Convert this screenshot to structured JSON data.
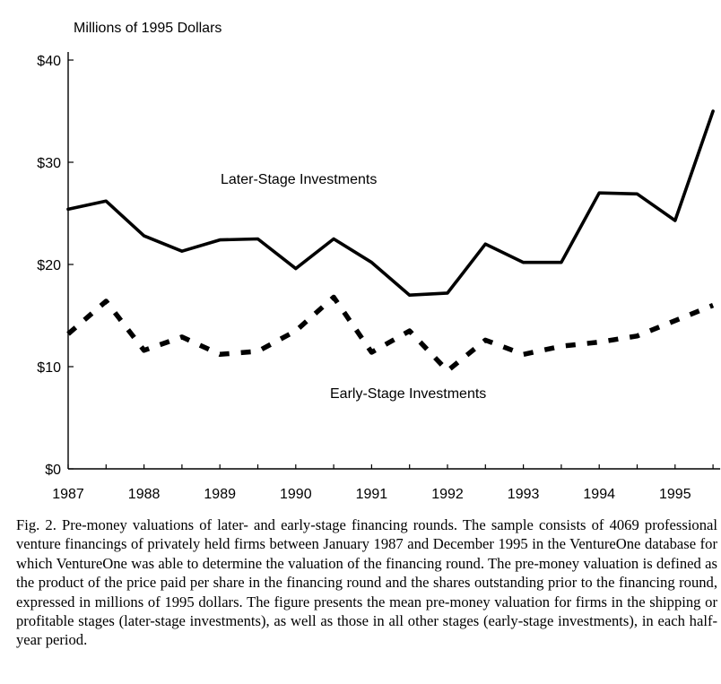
{
  "chart_data": {
    "type": "line",
    "ylabel": "Millions of 1995 Dollars",
    "y_ticks": [
      {
        "value": 0,
        "label": "$0"
      },
      {
        "value": 10,
        "label": "$10"
      },
      {
        "value": 20,
        "label": "$20"
      },
      {
        "value": 30,
        "label": "$30"
      },
      {
        "value": 40,
        "label": "$40"
      }
    ],
    "ylim": [
      0,
      40
    ],
    "x_tick_labels": [
      "1987",
      "1988",
      "1989",
      "1990",
      "1991",
      "1992",
      "1993",
      "1994",
      "1995"
    ],
    "x": [
      "1987 H1",
      "1987 H2",
      "1988 H1",
      "1988 H2",
      "1989 H1",
      "1989 H2",
      "1990 H1",
      "1990 H2",
      "1991 H1",
      "1991 H2",
      "1992 H1",
      "1992 H2",
      "1993 H1",
      "1993 H2",
      "1994 H1",
      "1994 H2",
      "1995 H1",
      "1995 H2"
    ],
    "series": [
      {
        "name": "Later-Stage Investments",
        "style": "solid",
        "values": [
          25.4,
          26.2,
          22.8,
          21.3,
          22.4,
          22.5,
          19.6,
          22.5,
          20.2,
          17.0,
          17.2,
          22.0,
          20.2,
          20.2,
          27.0,
          26.9,
          24.3,
          35.0
        ]
      },
      {
        "name": "Early-Stage Investments",
        "style": "dashed",
        "values": [
          13.2,
          16.4,
          11.6,
          12.9,
          11.2,
          11.5,
          13.5,
          16.8,
          11.4,
          13.5,
          9.6,
          12.6,
          11.2,
          12.0,
          12.4,
          13.0,
          14.5,
          16.0
        ]
      }
    ],
    "grid": false
  },
  "caption": "Fig. 2.  Pre-money valuations of later- and early-stage financing rounds. The sample consists of 4069 professional venture financings of privately held firms between January 1987 and December 1995 in the VentureOne database for which VentureOne was able to determine the valuation of the financing round. The pre-money valuation is defined as the product of the price paid per share in the financing round and the shares outstanding prior to the financing round, expressed in millions of 1995 dollars. The figure presents the mean pre-money valuation for firms in the shipping or profitable stages (later-stage investments), as well as those in all other stages (early-stage investments), in each half-year period."
}
